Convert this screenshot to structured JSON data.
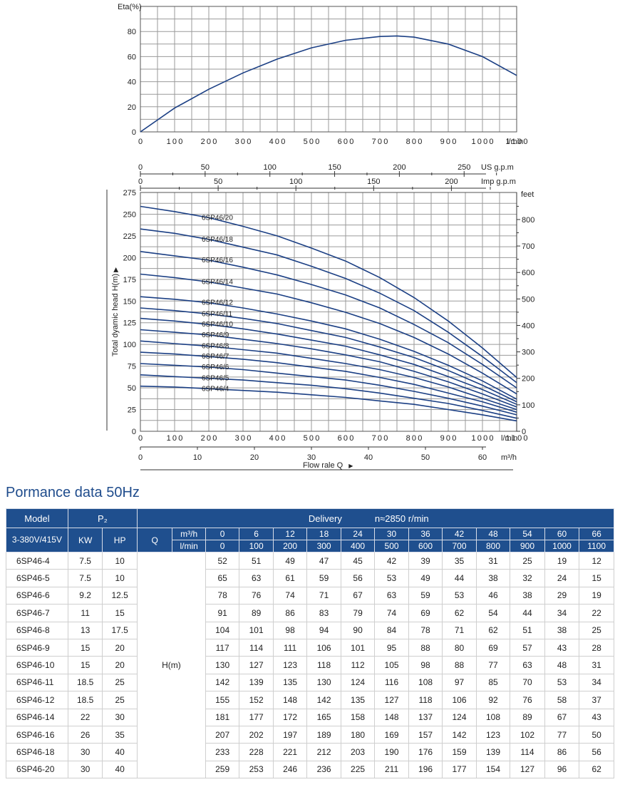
{
  "eff": {
    "ylabel": "Eta(%)",
    "xunit": "l/min",
    "yticks": [
      0,
      20,
      40,
      60,
      80
    ],
    "xticks": [
      0,
      100,
      200,
      300,
      400,
      500,
      600,
      700,
      800,
      900,
      1000,
      1100
    ]
  },
  "usgpm": {
    "label": "US g.p.m",
    "ticks": [
      0,
      50,
      100,
      150,
      200,
      250
    ]
  },
  "impgpm": {
    "label": "Imp g.p.m",
    "ticks": [
      0,
      50,
      100,
      150,
      200
    ]
  },
  "head": {
    "ylabel": "Total dyamic head H(m)",
    "ylabel_marker": "▶",
    "feet_label": "feet",
    "yticks": [
      0,
      25,
      50,
      75,
      100,
      125,
      150,
      175,
      200,
      225,
      250,
      275
    ],
    "feet_ticks": [
      0,
      100,
      200,
      300,
      400,
      500,
      600,
      700,
      800
    ],
    "xticks": [
      0,
      100,
      200,
      300,
      400,
      500,
      600,
      700,
      800,
      900,
      1000,
      1100
    ],
    "xunit": "l/min"
  },
  "m3h": {
    "unit": "m³/h",
    "ticks": [
      0,
      10,
      20,
      30,
      40,
      50,
      60
    ]
  },
  "flow": {
    "label": "Flow rale Q",
    "marker": "▶"
  },
  "chart_data": [
    {
      "type": "line",
      "ylabel": "Eta(%)",
      "xlabel": "l/min",
      "xlim": [
        0,
        1100
      ],
      "ylim": [
        0,
        90
      ],
      "grid": true,
      "series": [
        {
          "x": [
            0,
            100,
            200,
            300,
            400,
            500,
            600,
            700,
            750,
            800,
            900,
            1000,
            1100
          ],
          "values": [
            0,
            19,
            34,
            47,
            58,
            67,
            73,
            76,
            76.5,
            75.5,
            70,
            60,
            45
          ]
        }
      ]
    },
    {
      "type": "line",
      "ylabel": "Total dyamic head H(m)",
      "xlabel": "Flow rale Q (l/min)",
      "xlim": [
        0,
        1100
      ],
      "ylim": [
        0,
        275
      ],
      "y2label": "feet",
      "y2lim": [
        0,
        900
      ],
      "grid": true,
      "x": [
        0,
        100,
        200,
        300,
        400,
        500,
        600,
        700,
        800,
        900,
        1000,
        1100
      ],
      "series": [
        {
          "name": "6SP46/20",
          "values": [
            259,
            253,
            246,
            236,
            225,
            211,
            196,
            177,
            154,
            127,
            96,
            62
          ]
        },
        {
          "name": "6SP46/18",
          "values": [
            233,
            228,
            221,
            212,
            203,
            190,
            176,
            159,
            139,
            114,
            86,
            56
          ]
        },
        {
          "name": "6SP46/16",
          "values": [
            207,
            202,
            197,
            189,
            180,
            169,
            157,
            142,
            123,
            102,
            77,
            50
          ]
        },
        {
          "name": "6SP46/14",
          "values": [
            181,
            177,
            172,
            165,
            158,
            148,
            137,
            124,
            108,
            89,
            67,
            43
          ]
        },
        {
          "name": "6SP46/12",
          "values": [
            155,
            152,
            148,
            142,
            135,
            127,
            118,
            106,
            92,
            76,
            58,
            37
          ]
        },
        {
          "name": "6SP46/11",
          "values": [
            142,
            139,
            135,
            130,
            124,
            116,
            108,
            97,
            85,
            70,
            53,
            34
          ]
        },
        {
          "name": "6SP46/10",
          "values": [
            130,
            127,
            123,
            118,
            112,
            105,
            98,
            88,
            77,
            63,
            48,
            31
          ]
        },
        {
          "name": "6SP46/9",
          "values": [
            117,
            114,
            111,
            106,
            101,
            95,
            88,
            80,
            69,
            57,
            43,
            28
          ]
        },
        {
          "name": "6SP46/8",
          "values": [
            104,
            101,
            98,
            94,
            90,
            84,
            78,
            71,
            62,
            51,
            38,
            25
          ]
        },
        {
          "name": "6SP46/7",
          "values": [
            91,
            89,
            86,
            83,
            79,
            74,
            69,
            62,
            54,
            44,
            34,
            22
          ]
        },
        {
          "name": "6SP46/6",
          "values": [
            78,
            76,
            74,
            71,
            67,
            63,
            59,
            53,
            46,
            38,
            29,
            19
          ]
        },
        {
          "name": "6SP46/5",
          "values": [
            65,
            63,
            61,
            59,
            56,
            53,
            49,
            44,
            38,
            32,
            24,
            15
          ]
        },
        {
          "name": "6SP46/4",
          "values": [
            52,
            51,
            49,
            47,
            45,
            42,
            39,
            35,
            31,
            25,
            19,
            12
          ]
        }
      ]
    }
  ],
  "table": {
    "title": "Pormance data 50Hz",
    "model_header": "Model",
    "p2_header": "P₂",
    "delivery_header": "Delivery",
    "speed_header": "n≈2850 r/min",
    "voltage_header": "3-380V/415V",
    "kw_header": "KW",
    "hp_header": "HP",
    "q_header": "Q",
    "m3h_unit": "m³/h",
    "lmin_unit": "l/min",
    "h_label": "H(m)",
    "m3h_values": [
      "0",
      "6",
      "12",
      "18",
      "24",
      "30",
      "36",
      "42",
      "48",
      "54",
      "60",
      "66"
    ],
    "lmin_values": [
      "0",
      "100",
      "200",
      "300",
      "400",
      "500",
      "600",
      "700",
      "800",
      "900",
      "1000",
      "1100"
    ],
    "rows": [
      {
        "model": "6SP46-4",
        "kw": "7.5",
        "hp": "10",
        "h": [
          "52",
          "51",
          "49",
          "47",
          "45",
          "42",
          "39",
          "35",
          "31",
          "25",
          "19",
          "12"
        ]
      },
      {
        "model": "6SP46-5",
        "kw": "7.5",
        "hp": "10",
        "h": [
          "65",
          "63",
          "61",
          "59",
          "56",
          "53",
          "49",
          "44",
          "38",
          "32",
          "24",
          "15"
        ]
      },
      {
        "model": "6SP46-6",
        "kw": "9.2",
        "hp": "12.5",
        "h": [
          "78",
          "76",
          "74",
          "71",
          "67",
          "63",
          "59",
          "53",
          "46",
          "38",
          "29",
          "19"
        ]
      },
      {
        "model": "6SP46-7",
        "kw": "11",
        "hp": "15",
        "h": [
          "91",
          "89",
          "86",
          "83",
          "79",
          "74",
          "69",
          "62",
          "54",
          "44",
          "34",
          "22"
        ]
      },
      {
        "model": "6SP46-8",
        "kw": "13",
        "hp": "17.5",
        "h": [
          "104",
          "101",
          "98",
          "94",
          "90",
          "84",
          "78",
          "71",
          "62",
          "51",
          "38",
          "25"
        ]
      },
      {
        "model": "6SP46-9",
        "kw": "15",
        "hp": "20",
        "h": [
          "117",
          "114",
          "111",
          "106",
          "101",
          "95",
          "88",
          "80",
          "69",
          "57",
          "43",
          "28"
        ]
      },
      {
        "model": "6SP46-10",
        "kw": "15",
        "hp": "20",
        "h": [
          "130",
          "127",
          "123",
          "118",
          "112",
          "105",
          "98",
          "88",
          "77",
          "63",
          "48",
          "31"
        ]
      },
      {
        "model": "6SP46-11",
        "kw": "18.5",
        "hp": "25",
        "h": [
          "142",
          "139",
          "135",
          "130",
          "124",
          "116",
          "108",
          "97",
          "85",
          "70",
          "53",
          "34"
        ]
      },
      {
        "model": "6SP46-12",
        "kw": "18.5",
        "hp": "25",
        "h": [
          "155",
          "152",
          "148",
          "142",
          "135",
          "127",
          "118",
          "106",
          "92",
          "76",
          "58",
          "37"
        ]
      },
      {
        "model": "6SP46-14",
        "kw": "22",
        "hp": "30",
        "h": [
          "181",
          "177",
          "172",
          "165",
          "158",
          "148",
          "137",
          "124",
          "108",
          "89",
          "67",
          "43"
        ]
      },
      {
        "model": "6SP46-16",
        "kw": "26",
        "hp": "35",
        "h": [
          "207",
          "202",
          "197",
          "189",
          "180",
          "169",
          "157",
          "142",
          "123",
          "102",
          "77",
          "50"
        ]
      },
      {
        "model": "6SP46-18",
        "kw": "30",
        "hp": "40",
        "h": [
          "233",
          "228",
          "221",
          "212",
          "203",
          "190",
          "176",
          "159",
          "139",
          "114",
          "86",
          "56"
        ]
      },
      {
        "model": "6SP46-20",
        "kw": "30",
        "hp": "40",
        "h": [
          "259",
          "253",
          "246",
          "236",
          "225",
          "211",
          "196",
          "177",
          "154",
          "127",
          "96",
          "62"
        ]
      }
    ]
  }
}
